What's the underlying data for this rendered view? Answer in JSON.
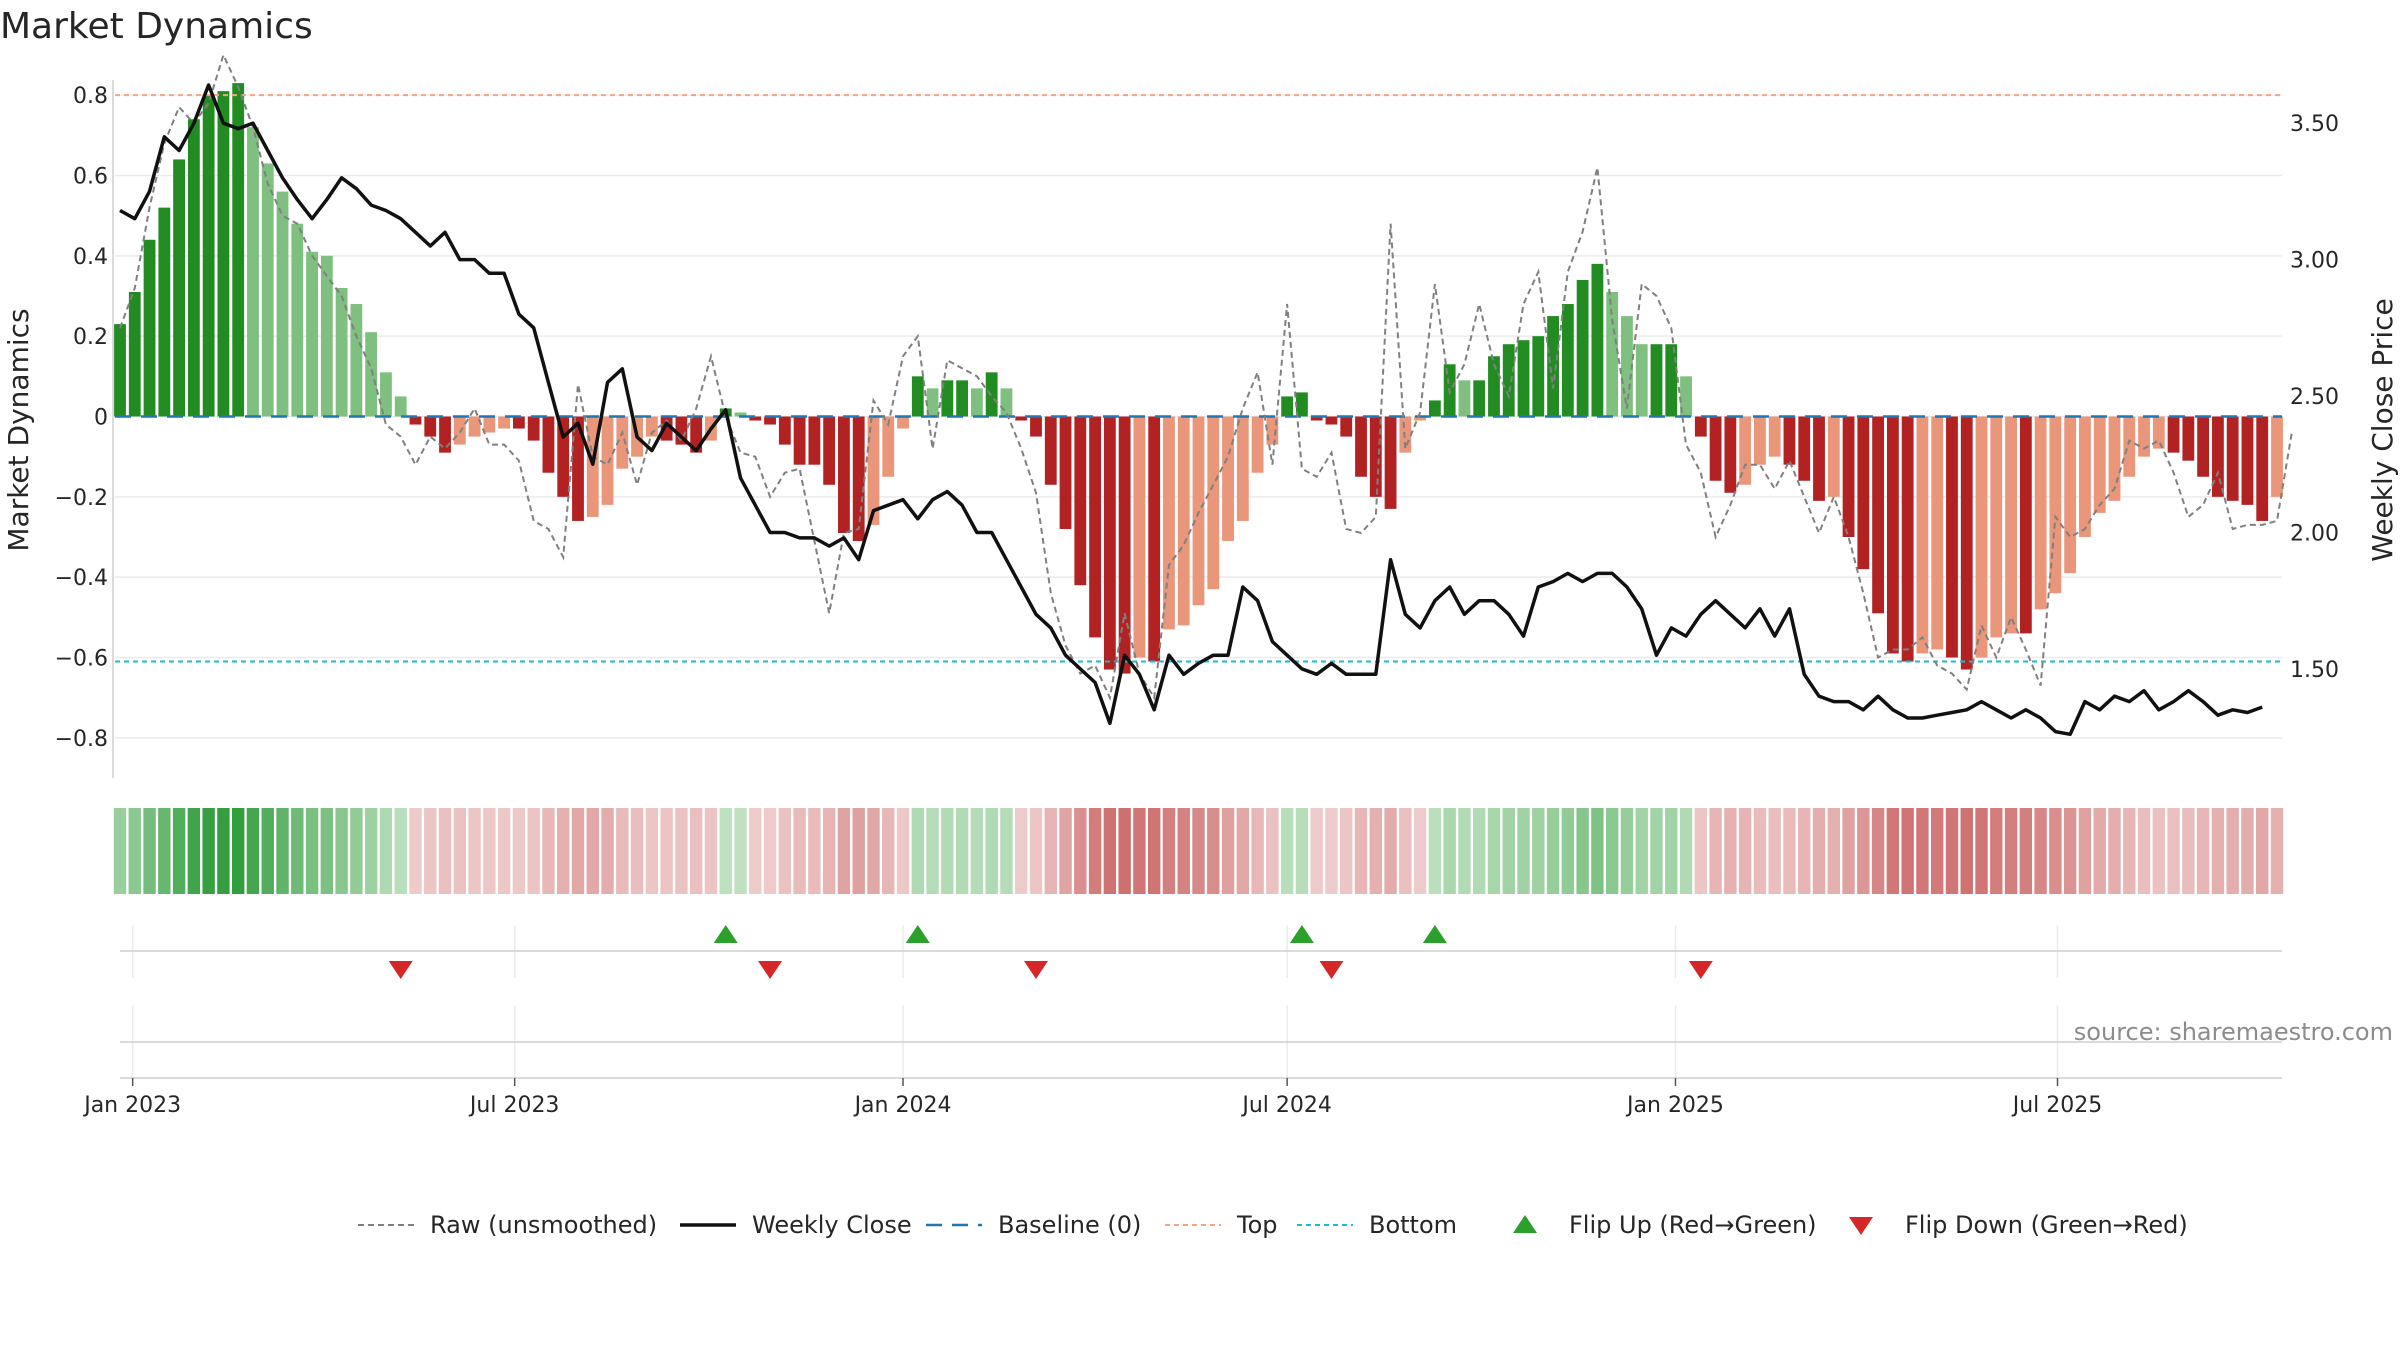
{
  "chart_data": {
    "type": "bar",
    "title": "Market Dynamics",
    "ylabel": "Market Dynamics",
    "y2label": "Weekly Close Price",
    "ylim": [
      -0.9,
      0.9
    ],
    "y2lim": [
      1.1,
      3.75
    ],
    "start_date": "2022-12-26",
    "yticks": [
      {
        "v": 0.8,
        "label": "0.8"
      },
      {
        "v": 0.6,
        "label": "0.6"
      },
      {
        "v": 0.4,
        "label": "0.4"
      },
      {
        "v": 0.2,
        "label": "0.2"
      },
      {
        "v": 0,
        "label": "0"
      },
      {
        "v": -0.2,
        "label": "−0.2"
      },
      {
        "v": -0.4,
        "label": "−0.4"
      },
      {
        "v": -0.6,
        "label": "−0.6"
      },
      {
        "v": -0.8,
        "label": "−0.8"
      }
    ],
    "y2ticks": [
      {
        "v": 3.5,
        "label": "3.50"
      },
      {
        "v": 3.0,
        "label": "3.00"
      },
      {
        "v": 2.5,
        "label": "2.50"
      },
      {
        "v": 2.0,
        "label": "2.00"
      },
      {
        "v": 1.5,
        "label": "1.50"
      }
    ],
    "xticks": [
      {
        "date": "2023-01-01",
        "label": "Jan 2023"
      },
      {
        "date": "2023-07-01",
        "label": "Jul 2023"
      },
      {
        "date": "2024-01-01",
        "label": "Jan 2024"
      },
      {
        "date": "2024-07-01",
        "label": "Jul 2024"
      },
      {
        "date": "2025-01-01",
        "label": "Jan 2025"
      },
      {
        "date": "2025-07-01",
        "label": "Jul 2025"
      }
    ],
    "top": 0.8,
    "bottom": -0.61,
    "baseline": 0,
    "grid": true,
    "legend_placement": "bottom-center",
    "source_text": "source: sharemaestro.com",
    "colors": {
      "strong_green": "#228b22",
      "light_green": "#7fbf7f",
      "strong_red": "#b22222",
      "light_red": "#e9967a",
      "top_line": "#f4a582",
      "bottom_line": "#17becf",
      "baseline": "#1f77b4",
      "close": "#111111",
      "raw": "#808080",
      "flip_up": "#2ca02c",
      "flip_down": "#d62728"
    },
    "bars": [
      0.23,
      0.31,
      0.44,
      0.52,
      0.64,
      0.74,
      0.8,
      0.81,
      0.83,
      0.72,
      0.63,
      0.56,
      0.48,
      0.41,
      0.4,
      0.32,
      0.28,
      0.21,
      0.11,
      0.05,
      -0.02,
      -0.05,
      -0.09,
      -0.07,
      -0.05,
      -0.04,
      -0.03,
      -0.03,
      -0.06,
      -0.14,
      -0.2,
      -0.26,
      -0.25,
      -0.22,
      -0.13,
      -0.1,
      -0.05,
      -0.06,
      -0.07,
      -0.09,
      -0.06,
      0.02,
      0.01,
      -0.01,
      -0.02,
      -0.07,
      -0.12,
      -0.12,
      -0.17,
      -0.29,
      -0.31,
      -0.27,
      -0.15,
      -0.03,
      0.1,
      0.07,
      0.09,
      0.09,
      0.07,
      0.11,
      0.07,
      -0.01,
      -0.05,
      -0.17,
      -0.28,
      -0.42,
      -0.55,
      -0.63,
      -0.64,
      -0.6,
      -0.61,
      -0.53,
      -0.52,
      -0.47,
      -0.43,
      -0.31,
      -0.26,
      -0.14,
      -0.07,
      0.05,
      0.06,
      -0.01,
      -0.02,
      -0.05,
      -0.15,
      -0.2,
      -0.23,
      -0.09,
      -0.01,
      0.04,
      0.13,
      0.09,
      0.09,
      0.15,
      0.18,
      0.19,
      0.2,
      0.25,
      0.28,
      0.34,
      0.38,
      0.31,
      0.25,
      0.18,
      0.18,
      0.18,
      0.1,
      -0.05,
      -0.16,
      -0.19,
      -0.17,
      -0.12,
      -0.1,
      -0.12,
      -0.16,
      -0.21,
      -0.2,
      -0.3,
      -0.38,
      -0.49,
      -0.59,
      -0.61,
      -0.59,
      -0.58,
      -0.6,
      -0.63,
      -0.6,
      -0.55,
      -0.54,
      -0.54,
      -0.48,
      -0.44,
      -0.39,
      -0.3,
      -0.24,
      -0.21,
      -0.15,
      -0.1,
      -0.08,
      -0.09,
      -0.11,
      -0.15,
      -0.2,
      -0.21,
      -0.22,
      -0.26,
      -0.2
    ],
    "close": [
      3.18,
      3.15,
      3.25,
      3.45,
      3.4,
      3.5,
      3.64,
      3.5,
      3.48,
      3.5,
      3.4,
      3.3,
      3.22,
      3.15,
      3.22,
      3.3,
      3.26,
      3.2,
      3.18,
      3.15,
      3.1,
      3.05,
      3.1,
      3.0,
      3.0,
      2.95,
      2.95,
      2.8,
      2.75,
      2.55,
      2.35,
      2.4,
      2.25,
      2.55,
      2.6,
      2.35,
      2.3,
      2.4,
      2.35,
      2.3,
      2.38,
      2.45,
      2.2,
      2.1,
      2.0,
      2.0,
      1.98,
      1.98,
      1.95,
      1.98,
      1.9,
      2.08,
      2.1,
      2.12,
      2.05,
      2.12,
      2.15,
      2.1,
      2.0,
      2.0,
      1.9,
      1.8,
      1.7,
      1.65,
      1.55,
      1.5,
      1.45,
      1.3,
      1.55,
      1.48,
      1.35,
      1.55,
      1.48,
      1.52,
      1.55,
      1.55,
      1.8,
      1.75,
      1.6,
      1.55,
      1.5,
      1.48,
      1.52,
      1.48,
      1.48,
      1.48,
      1.9,
      1.7,
      1.65,
      1.75,
      1.8,
      1.7,
      1.75,
      1.75,
      1.7,
      1.62,
      1.8,
      1.82,
      1.85,
      1.82,
      1.85,
      1.85,
      1.8,
      1.72,
      1.55,
      1.65,
      1.62,
      1.7,
      1.75,
      1.7,
      1.65,
      1.72,
      1.62,
      1.72,
      1.48,
      1.4,
      1.38,
      1.38,
      1.35,
      1.4,
      1.35,
      1.32,
      1.32,
      1.33,
      1.34,
      1.35,
      1.38,
      1.35,
      1.32,
      1.35,
      1.32,
      1.27,
      1.26,
      1.38,
      1.35,
      1.4,
      1.38,
      1.42,
      1.35,
      1.38,
      1.42,
      1.38,
      1.33,
      1.35,
      1.34,
      1.36
    ],
    "raw": [
      0.22,
      0.32,
      0.52,
      0.68,
      0.77,
      0.73,
      0.78,
      0.9,
      0.82,
      0.72,
      0.58,
      0.5,
      0.48,
      0.4,
      0.35,
      0.3,
      0.2,
      0.12,
      -0.02,
      -0.05,
      -0.12,
      -0.05,
      -0.08,
      -0.04,
      0.02,
      -0.07,
      -0.07,
      -0.11,
      -0.26,
      -0.28,
      -0.35,
      0.08,
      -0.1,
      -0.12,
      -0.04,
      -0.17,
      -0.04,
      -0.01,
      -0.06,
      0.02,
      0.15,
      0.0,
      -0.09,
      -0.1,
      -0.2,
      -0.14,
      -0.13,
      -0.31,
      -0.49,
      -0.29,
      -0.28,
      0.04,
      -0.02,
      0.15,
      0.2,
      -0.08,
      0.14,
      0.12,
      0.1,
      0.05,
      0.01,
      -0.08,
      -0.19,
      -0.44,
      -0.57,
      -0.64,
      -0.62,
      -0.7,
      -0.49,
      -0.64,
      -0.7,
      -0.37,
      -0.32,
      -0.24,
      -0.17,
      -0.1,
      0.02,
      0.11,
      -0.12,
      0.28,
      -0.13,
      -0.15,
      -0.09,
      -0.28,
      -0.29,
      -0.25,
      0.48,
      -0.08,
      0.01,
      0.33,
      0.06,
      0.13,
      0.28,
      0.13,
      0.05,
      0.28,
      0.36,
      0.07,
      0.36,
      0.46,
      0.62,
      0.24,
      0.02,
      0.33,
      0.3,
      0.22,
      -0.07,
      -0.14,
      -0.3,
      -0.22,
      -0.12,
      -0.12,
      -0.18,
      -0.11,
      -0.2,
      -0.29,
      -0.2,
      -0.3,
      -0.44,
      -0.6,
      -0.58,
      -0.58,
      -0.55,
      -0.62,
      -0.64,
      -0.68,
      -0.52,
      -0.6,
      -0.5,
      -0.58,
      -0.67,
      -0.25,
      -0.3,
      -0.28,
      -0.22,
      -0.18,
      -0.06,
      -0.08,
      -0.06,
      -0.14,
      -0.25,
      -0.22,
      -0.14,
      -0.28,
      -0.27,
      -0.27,
      -0.26,
      -0.04
    ],
    "flips_up": [
      41,
      54,
      80,
      89
    ],
    "flips_down": [
      19,
      44,
      62,
      82,
      107
    ],
    "legend": [
      {
        "key": "raw",
        "label": "Raw (unsmoothed)"
      },
      {
        "key": "close",
        "label": "Weekly Close"
      },
      {
        "key": "baseline",
        "label": "Baseline (0)"
      },
      {
        "key": "top",
        "label": "Top"
      },
      {
        "key": "bottom",
        "label": "Bottom"
      },
      {
        "key": "flip_up",
        "label": "Flip Up (Red→Green)"
      },
      {
        "key": "flip_down",
        "label": "Flip Down (Green→Red)"
      }
    ]
  }
}
